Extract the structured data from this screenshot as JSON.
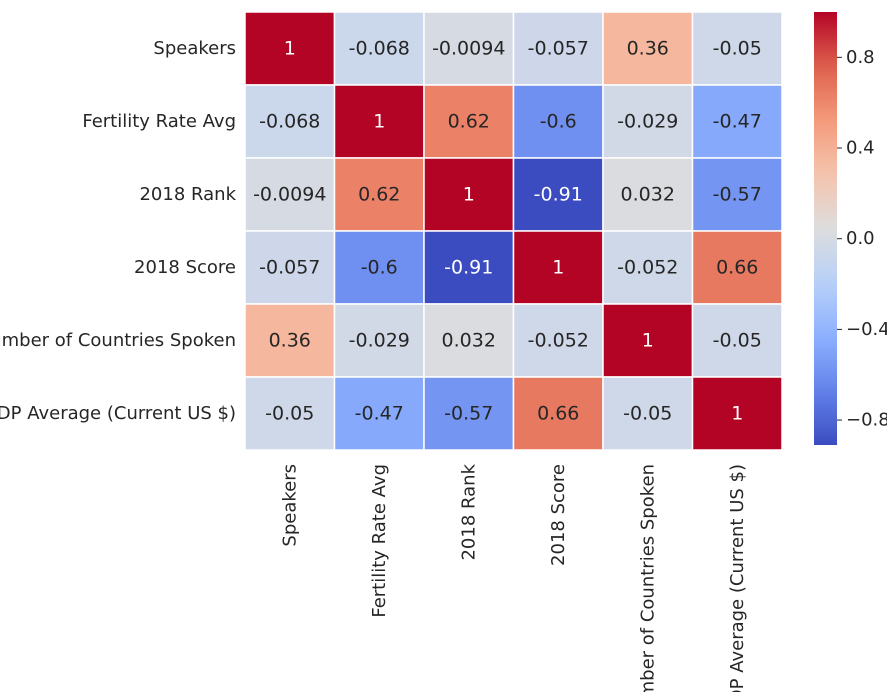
{
  "chart_data": {
    "type": "heatmap",
    "title": "",
    "xlabel": "",
    "ylabel": "",
    "row_labels": [
      "Speakers",
      "Fertility Rate Avg",
      "2018 Rank",
      "2018 Score",
      "Number of Countries Spoken",
      "GDP Average (Current US $)"
    ],
    "col_labels": [
      "Speakers",
      "Fertility Rate Avg",
      "2018 Rank",
      "2018 Score",
      "Number of Countries Spoken",
      "GDP Average (Current US $)"
    ],
    "values": [
      [
        1,
        -0.068,
        -0.0094,
        -0.057,
        0.36,
        -0.05
      ],
      [
        -0.068,
        1,
        0.62,
        -0.6,
        -0.029,
        -0.47
      ],
      [
        -0.0094,
        0.62,
        1,
        -0.91,
        0.032,
        -0.57
      ],
      [
        -0.057,
        -0.6,
        -0.91,
        1,
        -0.052,
        0.66
      ],
      [
        0.36,
        -0.029,
        0.032,
        -0.052,
        1,
        -0.05
      ],
      [
        -0.05,
        -0.47,
        -0.57,
        0.66,
        -0.05,
        1
      ]
    ],
    "cell_labels": [
      [
        "1",
        "-0.068",
        "-0.0094",
        "-0.057",
        "0.36",
        "-0.05"
      ],
      [
        "-0.068",
        "1",
        "0.62",
        "-0.6",
        "-0.029",
        "-0.47"
      ],
      [
        "-0.0094",
        "0.62",
        "1",
        "-0.91",
        "0.032",
        "-0.57"
      ],
      [
        "-0.057",
        "-0.6",
        "-0.91",
        "1",
        "-0.052",
        "0.66"
      ],
      [
        "0.36",
        "-0.029",
        "0.032",
        "-0.052",
        "1",
        "-0.05"
      ],
      [
        "-0.05",
        "-0.47",
        "-0.57",
        "0.66",
        "-0.05",
        "1"
      ]
    ],
    "colormap": "coolwarm",
    "color_range": [
      -0.91,
      1
    ],
    "colorbar": {
      "ticks": [
        0.8,
        0.4,
        0.0,
        -0.4,
        -0.8
      ],
      "tick_labels": [
        "0.8",
        "0.4",
        "0.0",
        "−0.4",
        "−0.8"
      ],
      "placement": "right"
    },
    "gridlines_between_cells": "white"
  }
}
